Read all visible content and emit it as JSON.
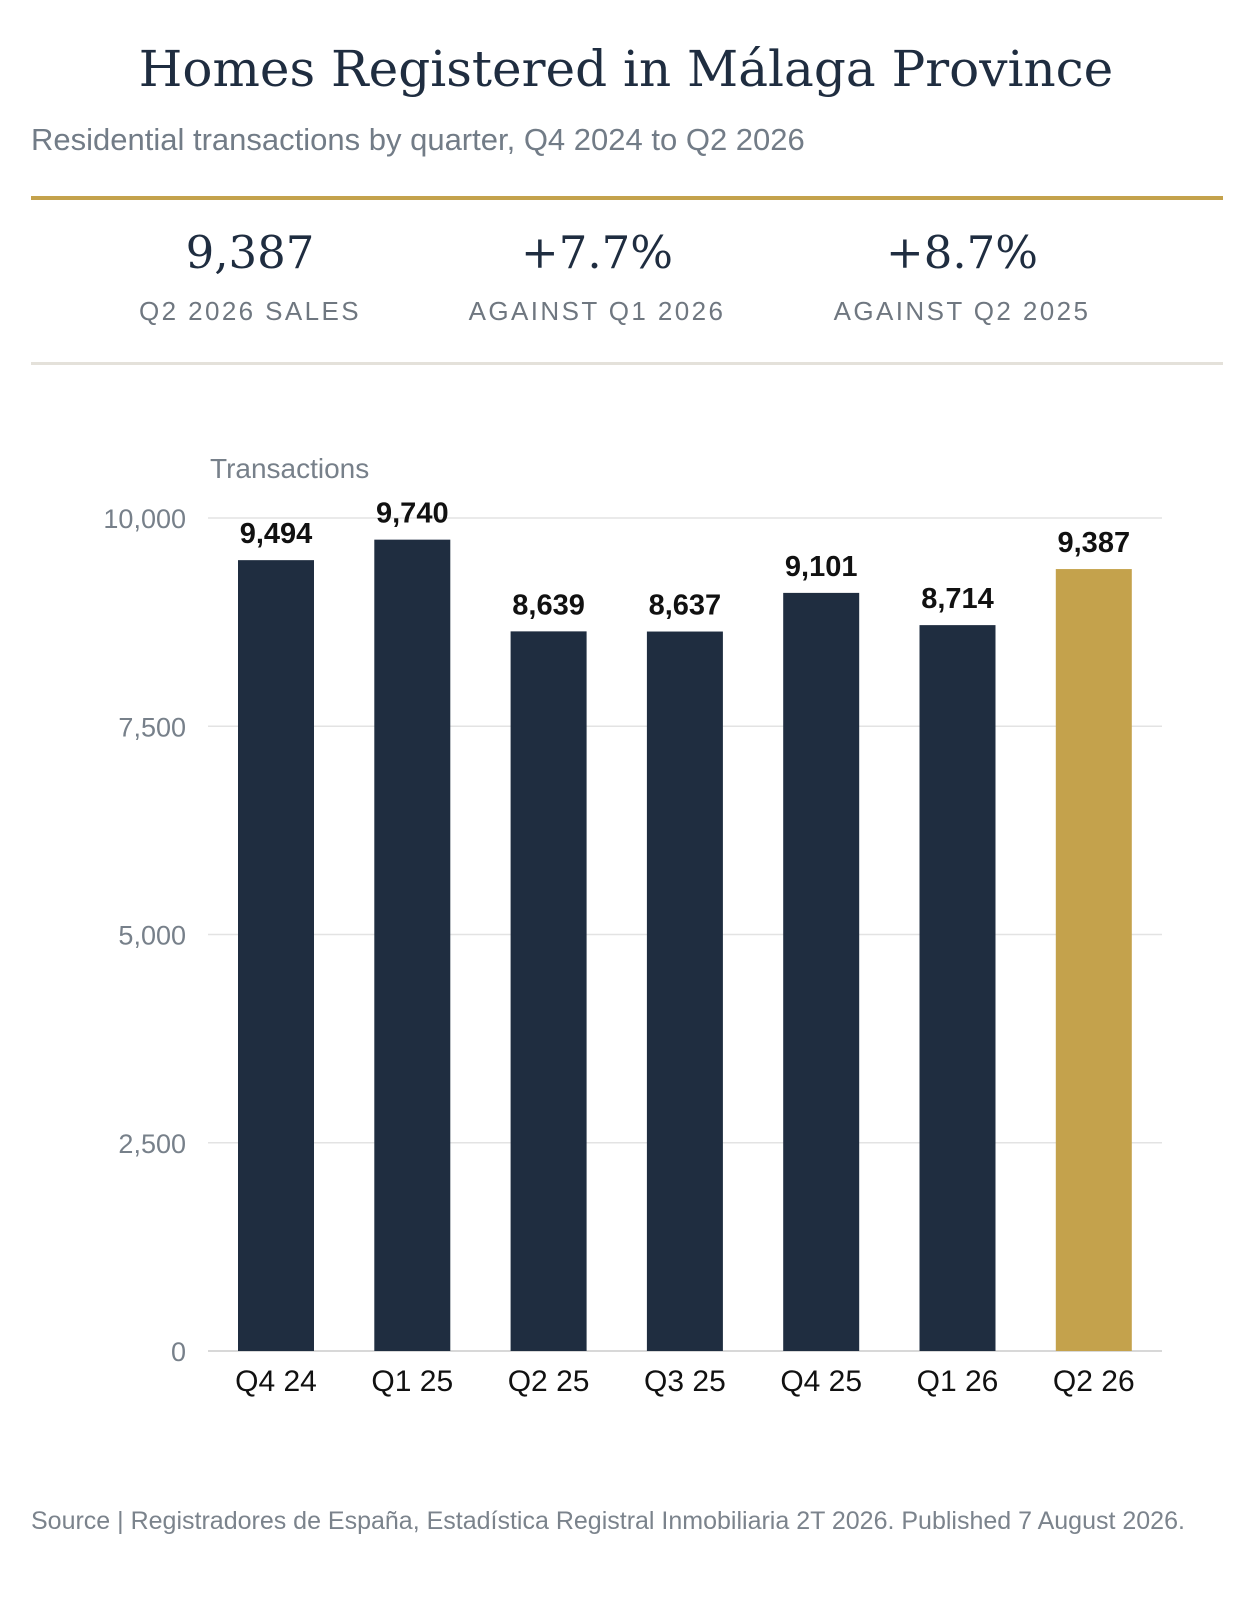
{
  "header": {
    "title": "Homes Registered in Málaga Province",
    "subtitle": "Residential transactions by quarter, Q4 2024 to Q2 2026"
  },
  "kpis": [
    {
      "value": "9,387",
      "label": "Q2 2026 SALES"
    },
    {
      "value": "+7.7%",
      "label": "AGAINST Q1 2026"
    },
    {
      "value": "+8.7%",
      "label": "AGAINST Q2 2025"
    }
  ],
  "chart_data": {
    "type": "bar",
    "title": "",
    "ylabel": "Transactions",
    "xlabel": "",
    "categories": [
      "Q4 24",
      "Q1 25",
      "Q2 25",
      "Q3 25",
      "Q4 25",
      "Q1 26",
      "Q2 26"
    ],
    "values": [
      9494,
      9740,
      8639,
      8637,
      9101,
      8714,
      9387
    ],
    "data_labels": [
      "9,494",
      "9,740",
      "8,639",
      "8,637",
      "9,101",
      "8,714",
      "9,387"
    ],
    "ylim": [
      0,
      10000
    ],
    "yticks": [
      0,
      2500,
      5000,
      7500,
      10000
    ],
    "ytick_labels": [
      "0",
      "2,500",
      "5,000",
      "7,500",
      "10,000"
    ],
    "grid": true,
    "legend": "none",
    "colors": {
      "bar": "#1f2d40",
      "highlight": "#c4a24c",
      "grid": "#e3e3e3",
      "tick_text": "#77808a"
    },
    "highlight_index": 6
  },
  "footer": {
    "source": "Source | Registradores de España, Estadística Registral Inmobiliaria 2T 2026. Published 7 August 2026."
  }
}
